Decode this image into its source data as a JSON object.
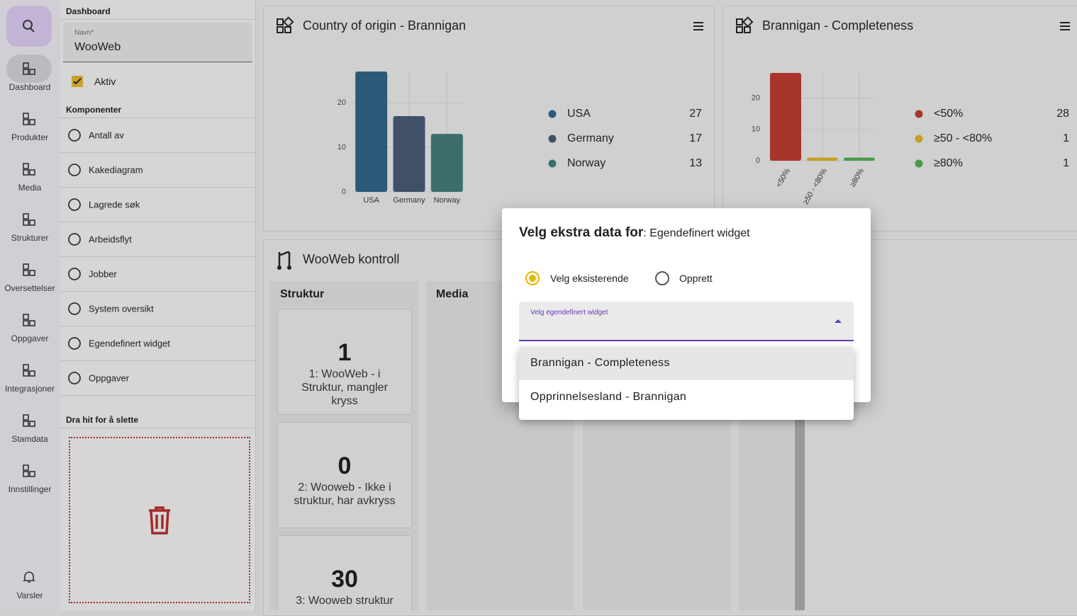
{
  "nav": {
    "search": "search",
    "items": [
      "Dashboard",
      "Produkter",
      "Media",
      "Strukturer",
      "Oversettelser",
      "Oppgaver",
      "Integrasjoner",
      "Stamdata",
      "Innstillinger"
    ],
    "bottom": "Varsler"
  },
  "panel": {
    "title": "Dashboard",
    "name_label": "Navn*",
    "name_value": "WooWeb",
    "active_label": "Aktiv",
    "components_title": "Komponenter",
    "components": [
      "Antall av",
      "Kakediagram",
      "Lagrede søk",
      "Arbeidsflyt",
      "Jobber",
      "System oversikt",
      "Egendefinert widget",
      "Oppgaver"
    ],
    "delete_zone": "Dra hit for å slette"
  },
  "widgets": [
    {
      "title": "Country of origin - Brannigan",
      "chart_data": {
        "type": "bar",
        "categories": [
          "USA",
          "Germany",
          "Norway"
        ],
        "values": [
          27,
          17,
          13
        ],
        "colors": [
          "#2b5a78",
          "#3f5068",
          "#3d6e6b"
        ],
        "ylim": [
          0,
          27
        ],
        "yticks": [
          0,
          10,
          20
        ],
        "grid": true,
        "legend": "right"
      }
    },
    {
      "title": "Brannigan - Completeness",
      "chart_data": {
        "type": "bar",
        "categories": [
          "<50%",
          "≥50 - <80%",
          "≥80%"
        ],
        "values": [
          28,
          1,
          1
        ],
        "colors": [
          "#a8352b",
          "#c4a020",
          "#4a9a48"
        ],
        "ylim": [
          0,
          28
        ],
        "yticks": [
          0,
          10,
          20
        ],
        "grid": true,
        "legend": "right",
        "rotate_labels": true
      }
    }
  ],
  "kontroll": {
    "title": "WooWeb kontroll",
    "columns": [
      {
        "title": "Struktur",
        "cards": [
          {
            "count": 1,
            "label": "1: WooWeb - i Struktur, mangler kryss"
          },
          {
            "count": 0,
            "label": "2: Wooweb - Ikke i struktur, har avkryss"
          },
          {
            "count": 30,
            "label": "3: Wooweb struktur"
          }
        ]
      },
      {
        "title": "Media"
      }
    ]
  },
  "dialog": {
    "title": "Velg ekstra data for",
    "subject": ": Egendefinert widget",
    "options": [
      "Velg eksisterende",
      "Opprett"
    ],
    "select_label": "Velg egendefinert widget",
    "menu": [
      "Brannigan - Completeness",
      "Opprinnelsesland - Brannigan"
    ]
  }
}
